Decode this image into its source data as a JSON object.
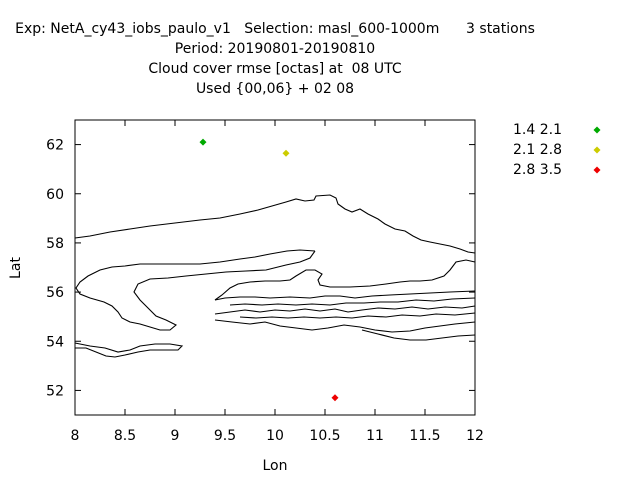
{
  "header": {
    "lines": [
      "Exp: NetA_cy43_iobs_paulo_v1   Selection: masl_600-1000m      3 stations",
      "Period: 20190801-20190810",
      "Cloud cover rmse [octas] at  08 UTC",
      "Used {00,06} + 02 08"
    ]
  },
  "chart_data": {
    "type": "scatter",
    "title": "Cloud cover rmse [octas] at  08 UTC",
    "xlabel": "Lon",
    "ylabel": "Lat",
    "xlim": [
      8,
      12
    ],
    "ylim": [
      51,
      63
    ],
    "xticks": [
      "8",
      "8.5",
      "9",
      "9.5",
      "10",
      "10.5",
      "11",
      "11.5",
      "12"
    ],
    "yticks": [
      "52",
      "54",
      "56",
      "58",
      "60",
      "62"
    ],
    "grid": false,
    "legend_position": "top-right outside",
    "series": [
      {
        "name": "1.4 2.1",
        "color": "#00aa00",
        "points": [
          {
            "x": 9.28,
            "y": 62.1
          }
        ]
      },
      {
        "name": "2.1 2.8",
        "color": "#cccc00",
        "points": [
          {
            "x": 10.11,
            "y": 61.65
          }
        ]
      },
      {
        "name": "2.8 3.5",
        "color": "#ee0000",
        "points": [
          {
            "x": 10.6,
            "y": 51.7
          }
        ]
      }
    ]
  }
}
